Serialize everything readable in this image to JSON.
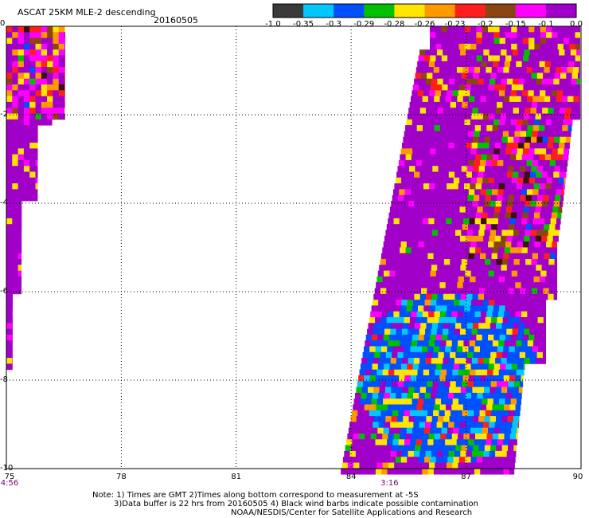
{
  "header": {
    "title": "ASCAT 25KM MLE-2 descending",
    "date": "20160505"
  },
  "colorbar": {
    "tick_labels": [
      "-1.0",
      "-0.35",
      "-0.3",
      "-0.29",
      "-0.28",
      "-0.26",
      "-0.23",
      "-0.2",
      "-0.15",
      "-0.1",
      "0.0"
    ],
    "colors": [
      "#3a3a3a",
      "#00c8ff",
      "#0050ff",
      "#00c000",
      "#ffe600",
      "#ff9900",
      "#ff1e1e",
      "#8b4513",
      "#ff00ff",
      "#a000c8"
    ]
  },
  "map": {
    "x_ticks": [
      "75",
      "78",
      "81",
      "84",
      "87",
      "90"
    ],
    "y_ticks": [
      "0",
      "-2",
      "-4",
      "-6",
      "-8",
      "-10"
    ],
    "time_labels": [
      {
        "text": "4:56",
        "lon": 75
      },
      {
        "text": "3:16",
        "lon": 85
      }
    ],
    "colors": {
      "purple": "#a000c8",
      "magenta": "#ff00ff",
      "blue": "#0050ff",
      "cyan": "#00c8ff",
      "green": "#00c000",
      "yellow": "#ffe600",
      "orange": "#ff9900",
      "red": "#ff1e1e",
      "brown": "#8b4513",
      "dark": "#3a1010"
    }
  },
  "footer": {
    "line1": "Note: 1) Times are GMT 2)Times along bottom correspond to measurement at -5S",
    "line2": "3)Data buffer is 22 hrs from 20160505 4) Black wind barbs indicate possible contamination",
    "line3": "NOAA/NESDIS/Center for Satellite Applications and Research"
  }
}
